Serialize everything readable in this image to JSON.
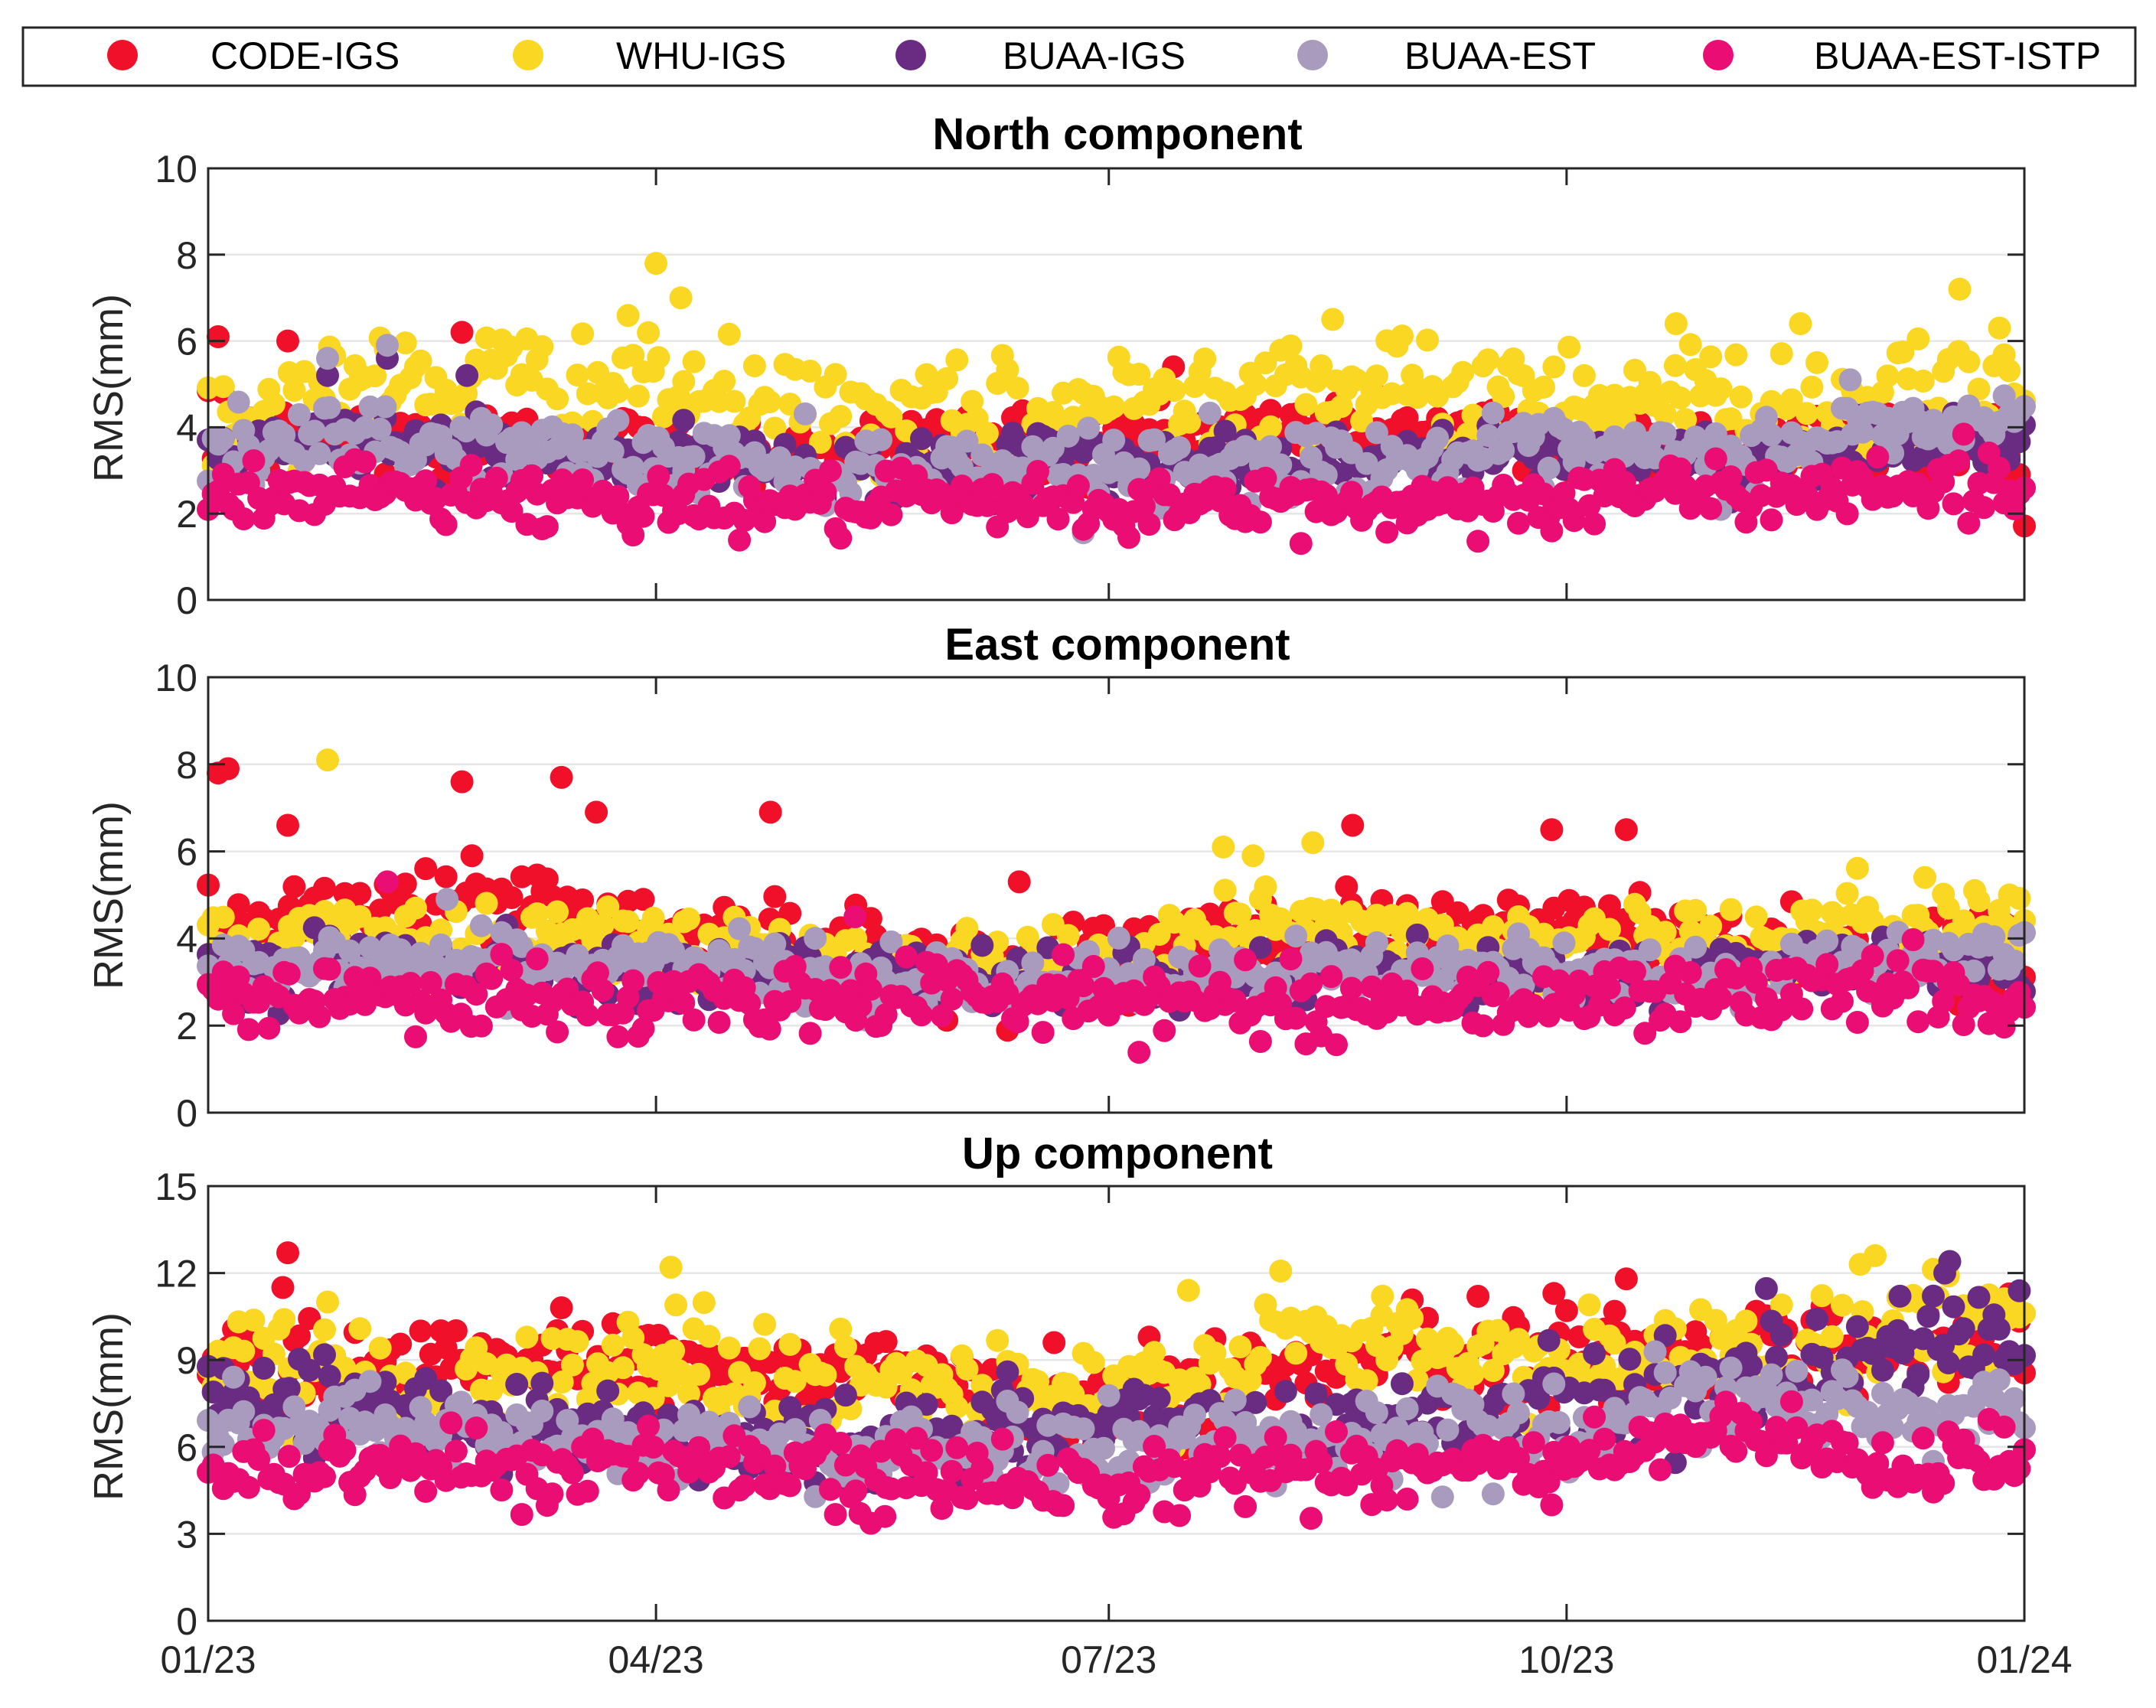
{
  "chart_data": {
    "type": "scatter",
    "legend": {
      "placement": "top",
      "entries": [
        {
          "name": "CODE-IGS",
          "color": "#f0102a"
        },
        {
          "name": "WHU-IGS",
          "color": "#fad722"
        },
        {
          "name": "BUAA-IGS",
          "color": "#6a2c82"
        },
        {
          "name": "BUAA-EST",
          "color": "#a99bbd"
        },
        {
          "name": "BUAA-EST-ISTP",
          "color": "#ea0d74"
        }
      ]
    },
    "x_axis": {
      "range_days": [
        0,
        365
      ],
      "ticks": [
        {
          "day": 0,
          "label": "01/23"
        },
        {
          "day": 90,
          "label": "04/23"
        },
        {
          "day": 181,
          "label": "07/23"
        },
        {
          "day": 273,
          "label": "10/23"
        },
        {
          "day": 365,
          "label": "01/24"
        }
      ]
    },
    "panels": [
      {
        "title": "North component",
        "ylabel": "RMS(mm)",
        "ylim": [
          0,
          10
        ],
        "yticks": [
          0,
          2,
          4,
          6,
          8,
          10
        ],
        "grid": true,
        "series": [
          {
            "name": "CODE-IGS",
            "mean": [
              3.6,
              3.7,
              3.6,
              3.5,
              3.5,
              3.6,
              3.8,
              3.9,
              3.9,
              3.6,
              3.5,
              3.7,
              3.6
            ],
            "spread": 0.45,
            "outliers": [
              [
                2,
                6.1
              ],
              [
                16,
                6.0
              ],
              [
                51,
                6.2
              ],
              [
                194,
                5.4
              ],
              [
                3,
                4.8
              ]
            ]
          },
          {
            "name": "WHU-IGS",
            "mean": [
              4.0,
              5.0,
              5.1,
              5.0,
              4.2,
              4.0,
              4.6,
              5.2,
              4.7,
              4.9,
              4.7,
              4.4,
              4.8
            ],
            "spread": 0.65,
            "outliers": [
              [
                90,
                7.8
              ],
              [
                95,
                7.0
              ],
              [
                320,
                6.4
              ],
              [
                295,
                6.4
              ],
              [
                352,
                7.2
              ],
              [
                360,
                6.3
              ],
              [
                226,
                6.5
              ]
            ]
          },
          {
            "name": "BUAA-IGS",
            "mean": [
              3.4,
              3.7,
              3.4,
              3.2,
              3.1,
              3.1,
              3.1,
              3.2,
              3.3,
              3.4,
              3.2,
              3.7,
              3.8
            ],
            "spread": 0.35,
            "outliers": [
              [
                36,
                5.6
              ],
              [
                24,
                5.2
              ],
              [
                52,
                5.2
              ]
            ]
          },
          {
            "name": "BUAA-EST",
            "mean": [
              3.3,
              3.7,
              3.5,
              3.3,
              3.1,
              3.1,
              3.1,
              3.2,
              3.3,
              3.4,
              3.3,
              4.0,
              4.1
            ],
            "spread": 0.4,
            "outliers": [
              [
                36,
                5.9
              ],
              [
                24,
                5.6
              ],
              [
                330,
                5.1
              ]
            ]
          },
          {
            "name": "BUAA-EST-ISTP",
            "mean": [
              2.4,
              2.6,
              2.4,
              2.3,
              2.2,
              2.2,
              2.2,
              2.2,
              2.2,
              2.4,
              2.5,
              2.7,
              2.6
            ],
            "spread": 0.35,
            "outliers": [
              [
                270,
                1.6
              ]
            ]
          }
        ]
      },
      {
        "title": "East component",
        "ylabel": "RMS(mm)",
        "ylim": [
          0,
          10
        ],
        "yticks": [
          0,
          2,
          4,
          6,
          8,
          10
        ],
        "grid": true,
        "series": [
          {
            "name": "CODE-IGS",
            "mean": [
              4.3,
              4.7,
              4.8,
              4.3,
              3.7,
              3.4,
              3.6,
              4.1,
              4.2,
              4.2,
              3.9,
              3.7,
              3.7
            ],
            "spread": 0.5,
            "outliers": [
              [
                2,
                7.8
              ],
              [
                4,
                7.9
              ],
              [
                16,
                6.6
              ],
              [
                51,
                7.6
              ],
              [
                71,
                7.7
              ],
              [
                78,
                6.9
              ],
              [
                113,
                6.9
              ],
              [
                270,
                6.5
              ],
              [
                285,
                6.5
              ],
              [
                230,
                6.6
              ],
              [
                53,
                5.9
              ],
              [
                163,
                5.3
              ]
            ]
          },
          {
            "name": "WHU-IGS",
            "mean": [
              4.0,
              3.9,
              4.1,
              3.9,
              3.6,
              3.5,
              3.7,
              4.3,
              4.1,
              3.9,
              3.9,
              4.2,
              4.4
            ],
            "spread": 0.45,
            "outliers": [
              [
                24,
                8.1
              ],
              [
                204,
                6.1
              ],
              [
                222,
                6.2
              ],
              [
                210,
                5.9
              ],
              [
                345,
                5.4
              ],
              [
                355,
                5.1
              ],
              [
                362,
                5.0
              ]
            ]
          },
          {
            "name": "BUAA-IGS",
            "mean": [
              3.3,
              3.5,
              3.4,
              3.3,
              3.1,
              3.0,
              3.0,
              3.1,
              3.2,
              3.1,
              3.2,
              3.4,
              3.4
            ],
            "spread": 0.35,
            "outliers": []
          },
          {
            "name": "BUAA-EST",
            "mean": [
              3.3,
              3.5,
              3.4,
              3.4,
              3.2,
              3.1,
              3.0,
              3.2,
              3.3,
              3.2,
              3.3,
              3.5,
              3.5
            ],
            "spread": 0.35,
            "outliers": [
              [
                48,
                4.9
              ]
            ]
          },
          {
            "name": "BUAA-EST-ISTP",
            "mean": [
              2.6,
              2.8,
              2.6,
              2.5,
              2.6,
              2.8,
              2.6,
              2.5,
              2.6,
              2.6,
              2.7,
              2.9,
              2.6
            ],
            "spread": 0.4,
            "outliers": [
              [
                36,
                5.3
              ],
              [
                130,
                4.5
              ]
            ]
          }
        ]
      },
      {
        "title": "Up component",
        "ylabel": "RMS(mm)",
        "ylim": [
          0,
          15
        ],
        "yticks": [
          0,
          3,
          6,
          9,
          12,
          15
        ],
        "grid": true,
        "series": [
          {
            "name": "CODE-IGS",
            "mean": [
              8.8,
              8.6,
              8.9,
              9.0,
              8.4,
              8.0,
              7.6,
              8.6,
              9.0,
              9.0,
              9.3,
              9.6,
              9.4
            ],
            "spread": 0.8,
            "outliers": [
              [
                16,
                12.7
              ],
              [
                15,
                11.5
              ],
              [
                71,
                10.8
              ],
              [
                285,
                11.8
              ],
              [
                273,
                10.7
              ],
              [
                170,
                9.6
              ]
            ]
          },
          {
            "name": "WHU-IGS",
            "mean": [
              9.0,
              8.3,
              8.4,
              8.9,
              8.5,
              8.0,
              7.6,
              9.6,
              9.3,
              8.7,
              9.2,
              10.0,
              10.4
            ],
            "spread": 0.9,
            "outliers": [
              [
                93,
                12.2
              ],
              [
                94,
                10.9
              ],
              [
                24,
                11.0
              ],
              [
                335,
                12.6
              ],
              [
                332,
                12.3
              ],
              [
                197,
                11.4
              ],
              [
                236,
                11.2
              ]
            ]
          },
          {
            "name": "BUAA-IGS",
            "mean": [
              8.4,
              7.4,
              6.9,
              6.6,
              6.0,
              6.4,
              6.8,
              6.8,
              7.0,
              7.4,
              8.3,
              9.2,
              9.8
            ],
            "spread": 0.8,
            "outliers": [
              [
                350,
                12.4
              ],
              [
                349,
                12.0
              ],
              [
                340,
                11.2
              ]
            ]
          },
          {
            "name": "BUAA-EST",
            "mean": [
              6.4,
              6.7,
              6.2,
              6.2,
              5.8,
              5.9,
              6.0,
              6.4,
              6.4,
              6.6,
              7.6,
              7.2,
              7.2
            ],
            "spread": 0.7,
            "outliers": [
              [
                300,
                6.0
              ]
            ]
          },
          {
            "name": "BUAA-EST-ISTP",
            "mean": [
              5.0,
              5.5,
              5.3,
              5.4,
              5.0,
              4.9,
              4.9,
              5.3,
              5.4,
              5.4,
              6.5,
              5.2,
              5.4
            ],
            "spread": 0.65,
            "outliers": [
              [
                270,
                4.0
              ],
              [
                131,
                3.7
              ],
              [
                136,
                3.6
              ]
            ]
          }
        ]
      }
    ],
    "points_per_series_per_panel": 360
  }
}
